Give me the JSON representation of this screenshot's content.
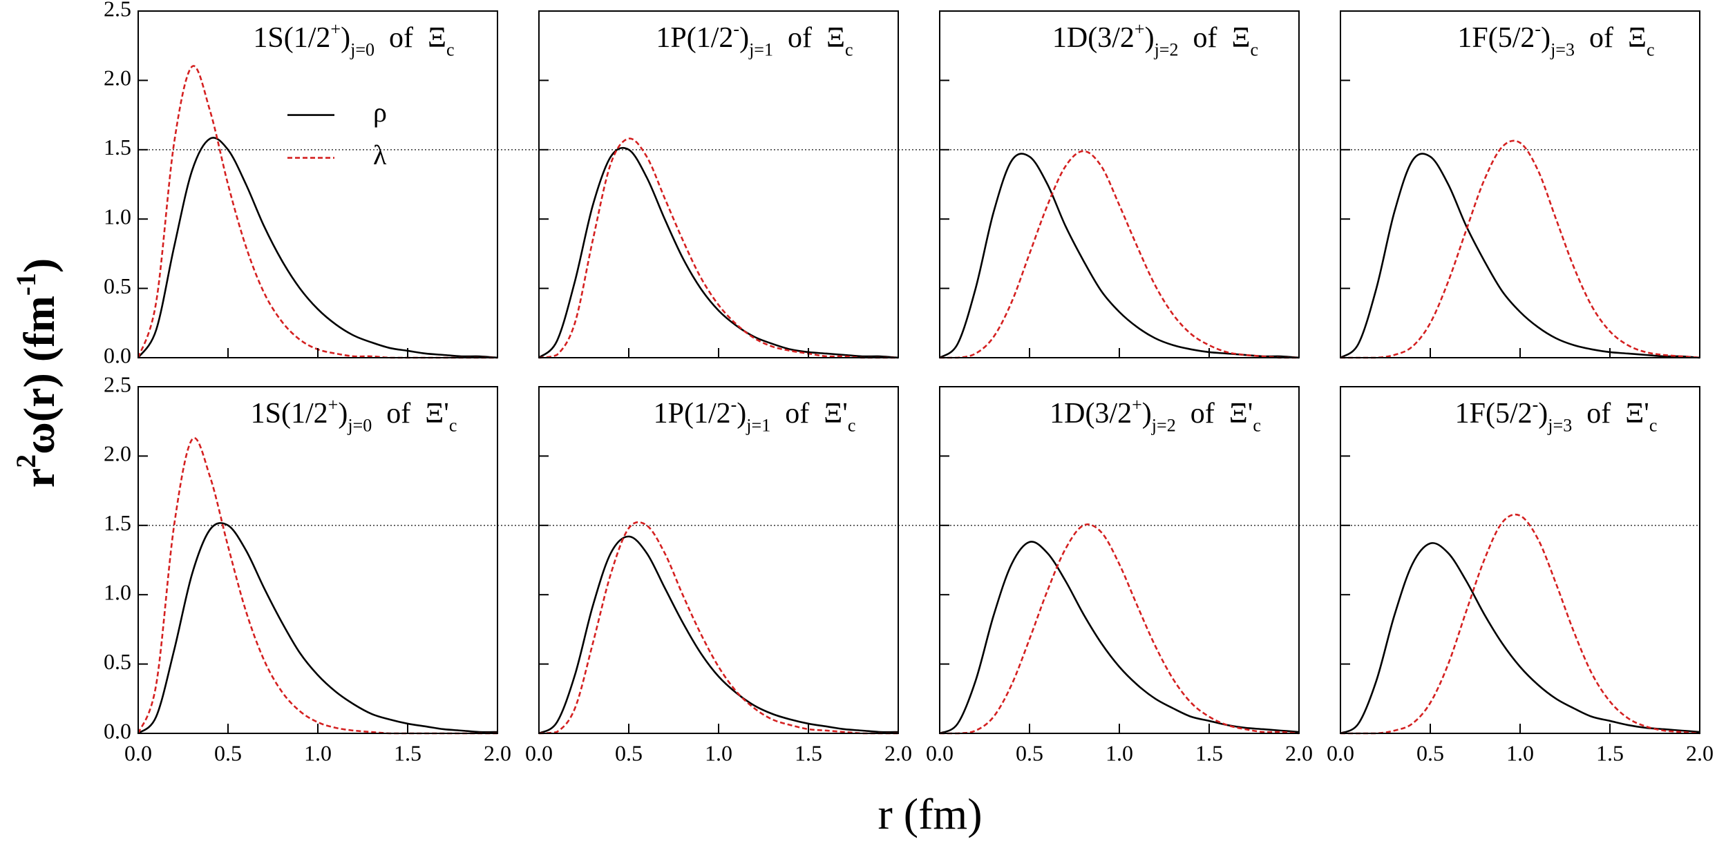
{
  "chart_data": [
    {
      "type": "line",
      "title": [
        {
          "text": "1S(1/2"
        },
        {
          "text": "+",
          "shift": "sup"
        },
        {
          "text": ")"
        },
        {
          "text": "j=0",
          "shift": "sub"
        },
        {
          "text": "of"
        },
        {
          "text": "Ξ"
        },
        {
          "text": "c",
          "shift": "sub"
        }
      ],
      "x": [
        0,
        0.1,
        0.2,
        0.3,
        0.4,
        0.5,
        0.6,
        0.7,
        0.8,
        0.9,
        1,
        1.1,
        1.2,
        1.3,
        1.4,
        1.5,
        1.6,
        1.7,
        1.8,
        1.9,
        2
      ],
      "series": [
        {
          "name": "ρ",
          "color": "#000000",
          "style": "solid",
          "values": [
            0,
            0.2,
            0.8,
            1.35,
            1.58,
            1.5,
            1.25,
            0.95,
            0.7,
            0.5,
            0.35,
            0.24,
            0.16,
            0.11,
            0.07,
            0.05,
            0.03,
            0.02,
            0.01,
            0.01,
            0
          ]
        },
        {
          "name": "λ",
          "color": "#d42020",
          "style": "dashed",
          "values": [
            0,
            0.4,
            1.55,
            2.1,
            1.78,
            1.25,
            0.8,
            0.47,
            0.26,
            0.13,
            0.06,
            0.03,
            0.01,
            0.01,
            0,
            0,
            0,
            0,
            0,
            0,
            0
          ]
        }
      ],
      "xlim": [
        0,
        2
      ],
      "ylim": [
        0,
        2.5
      ],
      "hline": 1.5,
      "xticks": [
        0,
        0.5,
        1,
        1.5,
        2
      ],
      "yticks": [
        {
          "value": 0,
          "label": "0.0"
        },
        {
          "value": 0.5,
          "label": "0.5"
        },
        {
          "value": 1,
          "label": "1.0"
        },
        {
          "value": 1.5,
          "label": "1.5"
        },
        {
          "value": 2,
          "label": "2.0"
        },
        {
          "value": 2.5,
          "label": "2.5"
        }
      ]
    },
    {
      "type": "line",
      "title": [
        {
          "text": "1P(1/2"
        },
        {
          "text": "-",
          "shift": "sup"
        },
        {
          "text": ")"
        },
        {
          "text": "j=1",
          "shift": "sub"
        },
        {
          "text": "of"
        },
        {
          "text": "Ξ"
        },
        {
          "text": "c",
          "shift": "sub"
        }
      ],
      "x": [
        0,
        0.1,
        0.2,
        0.3,
        0.4,
        0.5,
        0.6,
        0.7,
        0.8,
        0.9,
        1,
        1.1,
        1.2,
        1.3,
        1.4,
        1.5,
        1.6,
        1.7,
        1.8,
        1.9,
        2
      ],
      "series": [
        {
          "color": "#000000",
          "style": "solid",
          "values": [
            0,
            0.12,
            0.55,
            1.1,
            1.45,
            1.5,
            1.3,
            1,
            0.72,
            0.5,
            0.34,
            0.23,
            0.15,
            0.1,
            0.06,
            0.04,
            0.03,
            0.02,
            0.01,
            0.01,
            0
          ]
        },
        {
          "color": "#d42020",
          "style": "dashed",
          "values": [
            0,
            0.02,
            0.25,
            0.85,
            1.4,
            1.58,
            1.45,
            1.15,
            0.85,
            0.58,
            0.38,
            0.24,
            0.14,
            0.08,
            0.05,
            0.03,
            0.01,
            0.01,
            0,
            0,
            0
          ]
        }
      ],
      "xlim": [
        0,
        2
      ],
      "ylim": [
        0,
        2.5
      ],
      "hline": 1.5,
      "xticks": [
        0,
        0.5,
        1,
        1.5,
        2
      ],
      "yticks": [
        0,
        0.5,
        1,
        1.5,
        2,
        2.5
      ]
    },
    {
      "type": "line",
      "title": [
        {
          "text": "1D(3/2"
        },
        {
          "text": "+",
          "shift": "sup"
        },
        {
          "text": ")"
        },
        {
          "text": "j=2",
          "shift": "sub"
        },
        {
          "text": "of"
        },
        {
          "text": "Ξ"
        },
        {
          "text": "c",
          "shift": "sub"
        }
      ],
      "x": [
        0,
        0.1,
        0.2,
        0.3,
        0.4,
        0.5,
        0.6,
        0.7,
        0.8,
        0.9,
        1,
        1.1,
        1.2,
        1.3,
        1.4,
        1.5,
        1.6,
        1.7,
        1.8,
        1.9,
        2
      ],
      "series": [
        {
          "color": "#000000",
          "style": "solid",
          "values": [
            0,
            0.1,
            0.5,
            1.05,
            1.42,
            1.45,
            1.25,
            0.95,
            0.7,
            0.48,
            0.33,
            0.22,
            0.14,
            0.09,
            0.06,
            0.04,
            0.03,
            0.02,
            0.01,
            0.01,
            0
          ]
        },
        {
          "color": "#d42020",
          "style": "dashed",
          "values": [
            0,
            0,
            0.03,
            0.15,
            0.4,
            0.75,
            1.1,
            1.38,
            1.49,
            1.38,
            1.1,
            0.8,
            0.52,
            0.31,
            0.17,
            0.09,
            0.04,
            0.02,
            0.01,
            0,
            0
          ]
        }
      ],
      "xlim": [
        0,
        2
      ],
      "ylim": [
        0,
        2.5
      ],
      "hline": 1.5,
      "xticks": [
        0,
        0.5,
        1,
        1.5,
        2
      ],
      "yticks": [
        0,
        0.5,
        1,
        1.5,
        2,
        2.5
      ]
    },
    {
      "type": "line",
      "title": [
        {
          "text": "1F(5/2"
        },
        {
          "text": "-",
          "shift": "sup"
        },
        {
          "text": ")"
        },
        {
          "text": "j=3",
          "shift": "sub"
        },
        {
          "text": "of"
        },
        {
          "text": "Ξ"
        },
        {
          "text": "c",
          "shift": "sub"
        }
      ],
      "x": [
        0,
        0.1,
        0.2,
        0.3,
        0.4,
        0.5,
        0.6,
        0.7,
        0.8,
        0.9,
        1,
        1.1,
        1.2,
        1.3,
        1.4,
        1.5,
        1.6,
        1.7,
        1.8,
        1.9,
        2
      ],
      "series": [
        {
          "color": "#000000",
          "style": "solid",
          "values": [
            0,
            0.1,
            0.5,
            1.05,
            1.42,
            1.45,
            1.25,
            0.95,
            0.7,
            0.48,
            0.33,
            0.22,
            0.14,
            0.09,
            0.06,
            0.04,
            0.03,
            0.02,
            0.01,
            0.01,
            0
          ]
        },
        {
          "color": "#d42020",
          "style": "dashed",
          "values": [
            0,
            0,
            0,
            0.02,
            0.08,
            0.25,
            0.55,
            0.92,
            1.28,
            1.52,
            1.55,
            1.35,
            1,
            0.65,
            0.37,
            0.19,
            0.09,
            0.04,
            0.02,
            0.01,
            0
          ]
        }
      ],
      "xlim": [
        0,
        2
      ],
      "ylim": [
        0,
        2.5
      ],
      "hline": 1.5,
      "xticks": [
        0,
        0.5,
        1,
        1.5,
        2
      ],
      "yticks": [
        0,
        0.5,
        1,
        1.5,
        2,
        2.5
      ]
    },
    {
      "type": "line",
      "title": [
        {
          "text": "1S(1/2"
        },
        {
          "text": "+",
          "shift": "sup"
        },
        {
          "text": ")"
        },
        {
          "text": "j=0",
          "shift": "sub"
        },
        {
          "text": "of"
        },
        {
          "text": "Ξ'"
        },
        {
          "text": "c",
          "shift": "sub"
        }
      ],
      "x": [
        0,
        0.1,
        0.2,
        0.3,
        0.4,
        0.5,
        0.6,
        0.7,
        0.8,
        0.9,
        1,
        1.1,
        1.2,
        1.3,
        1.4,
        1.5,
        1.6,
        1.7,
        1.8,
        1.9,
        2
      ],
      "series": [
        {
          "color": "#000000",
          "style": "solid",
          "values": [
            0,
            0.12,
            0.6,
            1.15,
            1.47,
            1.5,
            1.32,
            1.05,
            0.8,
            0.58,
            0.42,
            0.3,
            0.21,
            0.14,
            0.1,
            0.07,
            0.05,
            0.03,
            0.02,
            0.01,
            0.01
          ]
        },
        {
          "color": "#d42020",
          "style": "dashed",
          "values": [
            0,
            0.35,
            1.5,
            2.12,
            1.85,
            1.35,
            0.88,
            0.53,
            0.3,
            0.16,
            0.08,
            0.04,
            0.02,
            0.01,
            0,
            0,
            0,
            0,
            0,
            0,
            0
          ]
        }
      ],
      "xlim": [
        0,
        2
      ],
      "ylim": [
        0,
        2.5
      ],
      "hline": 1.5,
      "xticks": [
        {
          "value": 0,
          "label": "0.0"
        },
        {
          "value": 0.5,
          "label": "0.5"
        },
        {
          "value": 1,
          "label": "1.0"
        },
        {
          "value": 1.5,
          "label": "1.5"
        },
        {
          "value": 2,
          "label": "2.0"
        }
      ],
      "yticks": [
        {
          "value": 0,
          "label": "0.0"
        },
        {
          "value": 0.5,
          "label": "0.5"
        },
        {
          "value": 1,
          "label": "1.0"
        },
        {
          "value": 1.5,
          "label": "1.5"
        },
        {
          "value": 2,
          "label": "2.0"
        },
        {
          "value": 2.5,
          "label": "2.5"
        }
      ]
    },
    {
      "type": "line",
      "title": [
        {
          "text": "1P(1/2"
        },
        {
          "text": "-",
          "shift": "sup"
        },
        {
          "text": ")"
        },
        {
          "text": "j=1",
          "shift": "sub"
        },
        {
          "text": "of"
        },
        {
          "text": "Ξ'"
        },
        {
          "text": "c",
          "shift": "sub"
        }
      ],
      "x": [
        0,
        0.1,
        0.2,
        0.3,
        0.4,
        0.5,
        0.6,
        0.7,
        0.8,
        0.9,
        1,
        1.1,
        1.2,
        1.3,
        1.4,
        1.5,
        1.6,
        1.7,
        1.8,
        1.9,
        2
      ],
      "series": [
        {
          "color": "#000000",
          "style": "solid",
          "values": [
            0,
            0.08,
            0.42,
            0.92,
            1.3,
            1.42,
            1.3,
            1.05,
            0.8,
            0.58,
            0.41,
            0.29,
            0.2,
            0.14,
            0.1,
            0.07,
            0.05,
            0.03,
            0.02,
            0.01,
            0.01
          ]
        },
        {
          "color": "#d42020",
          "style": "dashed",
          "values": [
            0,
            0.01,
            0.18,
            0.65,
            1.15,
            1.48,
            1.5,
            1.3,
            1,
            0.72,
            0.48,
            0.3,
            0.18,
            0.1,
            0.06,
            0.03,
            0.02,
            0.01,
            0,
            0,
            0
          ]
        }
      ],
      "xlim": [
        0,
        2
      ],
      "ylim": [
        0,
        2.5
      ],
      "hline": 1.5,
      "xticks": [
        {
          "value": 0,
          "label": "0.0"
        },
        {
          "value": 0.5,
          "label": "0.5"
        },
        {
          "value": 1,
          "label": "1.0"
        },
        {
          "value": 1.5,
          "label": "1.5"
        },
        {
          "value": 2,
          "label": "2.0"
        }
      ],
      "yticks": [
        0,
        0.5,
        1,
        1.5,
        2,
        2.5
      ]
    },
    {
      "type": "line",
      "title": [
        {
          "text": "1D(3/2"
        },
        {
          "text": "+",
          "shift": "sup"
        },
        {
          "text": ")"
        },
        {
          "text": "j=2",
          "shift": "sub"
        },
        {
          "text": "of"
        },
        {
          "text": "Ξ'"
        },
        {
          "text": "c",
          "shift": "sub"
        }
      ],
      "x": [
        0,
        0.1,
        0.2,
        0.3,
        0.4,
        0.5,
        0.6,
        0.7,
        0.8,
        0.9,
        1,
        1.1,
        1.2,
        1.3,
        1.4,
        1.5,
        1.6,
        1.7,
        1.8,
        1.9,
        2
      ],
      "series": [
        {
          "color": "#000000",
          "style": "solid",
          "values": [
            0,
            0.07,
            0.38,
            0.85,
            1.22,
            1.38,
            1.3,
            1.1,
            0.86,
            0.65,
            0.48,
            0.35,
            0.25,
            0.18,
            0.12,
            0.09,
            0.06,
            0.04,
            0.03,
            0.02,
            0.01
          ]
        },
        {
          "color": "#d42020",
          "style": "dashed",
          "values": [
            0,
            0,
            0.02,
            0.12,
            0.35,
            0.68,
            1.03,
            1.33,
            1.5,
            1.45,
            1.22,
            0.92,
            0.63,
            0.39,
            0.22,
            0.12,
            0.06,
            0.03,
            0.01,
            0.01,
            0
          ]
        }
      ],
      "xlim": [
        0,
        2
      ],
      "ylim": [
        0,
        2.5
      ],
      "hline": 1.5,
      "xticks": [
        {
          "value": 0,
          "label": "0.0"
        },
        {
          "value": 0.5,
          "label": "0.5"
        },
        {
          "value": 1,
          "label": "1.0"
        },
        {
          "value": 1.5,
          "label": "1.5"
        },
        {
          "value": 2,
          "label": "2.0"
        }
      ],
      "yticks": [
        0,
        0.5,
        1,
        1.5,
        2,
        2.5
      ]
    },
    {
      "type": "line",
      "title": [
        {
          "text": "1F(5/2"
        },
        {
          "text": "-",
          "shift": "sup"
        },
        {
          "text": ")"
        },
        {
          "text": "j=3",
          "shift": "sub"
        },
        {
          "text": "of"
        },
        {
          "text": "Ξ'"
        },
        {
          "text": "c",
          "shift": "sub"
        }
      ],
      "x": [
        0,
        0.1,
        0.2,
        0.3,
        0.4,
        0.5,
        0.6,
        0.7,
        0.8,
        0.9,
        1,
        1.1,
        1.2,
        1.3,
        1.4,
        1.5,
        1.6,
        1.7,
        1.8,
        1.9,
        2
      ],
      "series": [
        {
          "color": "#000000",
          "style": "solid",
          "values": [
            0,
            0.07,
            0.38,
            0.85,
            1.22,
            1.37,
            1.3,
            1.1,
            0.86,
            0.65,
            0.48,
            0.35,
            0.25,
            0.18,
            0.12,
            0.09,
            0.06,
            0.04,
            0.03,
            0.02,
            0.01
          ]
        },
        {
          "color": "#d42020",
          "style": "dashed",
          "values": [
            0,
            0,
            0,
            0.02,
            0.07,
            0.22,
            0.5,
            0.88,
            1.25,
            1.52,
            1.57,
            1.4,
            1.08,
            0.73,
            0.43,
            0.23,
            0.11,
            0.05,
            0.02,
            0.01,
            0
          ]
        }
      ],
      "xlim": [
        0,
        2
      ],
      "ylim": [
        0,
        2.5
      ],
      "hline": 1.5,
      "xticks": [
        {
          "value": 0,
          "label": "0.0"
        },
        {
          "value": 0.5,
          "label": "0.5"
        },
        {
          "value": 1,
          "label": "1.0"
        },
        {
          "value": 1.5,
          "label": "1.5"
        },
        {
          "value": 2,
          "label": "2.0"
        }
      ],
      "yticks": [
        0,
        0.5,
        1,
        1.5,
        2,
        2.5
      ]
    }
  ],
  "y_label": [
    {
      "text": "r"
    },
    {
      "text": "2",
      "shift": "sup"
    },
    {
      "text": "ω(r) (fm"
    },
    {
      "text": "-1",
      "shift": "sup"
    },
    {
      "text": ")"
    }
  ],
  "x_label": "r (fm)"
}
